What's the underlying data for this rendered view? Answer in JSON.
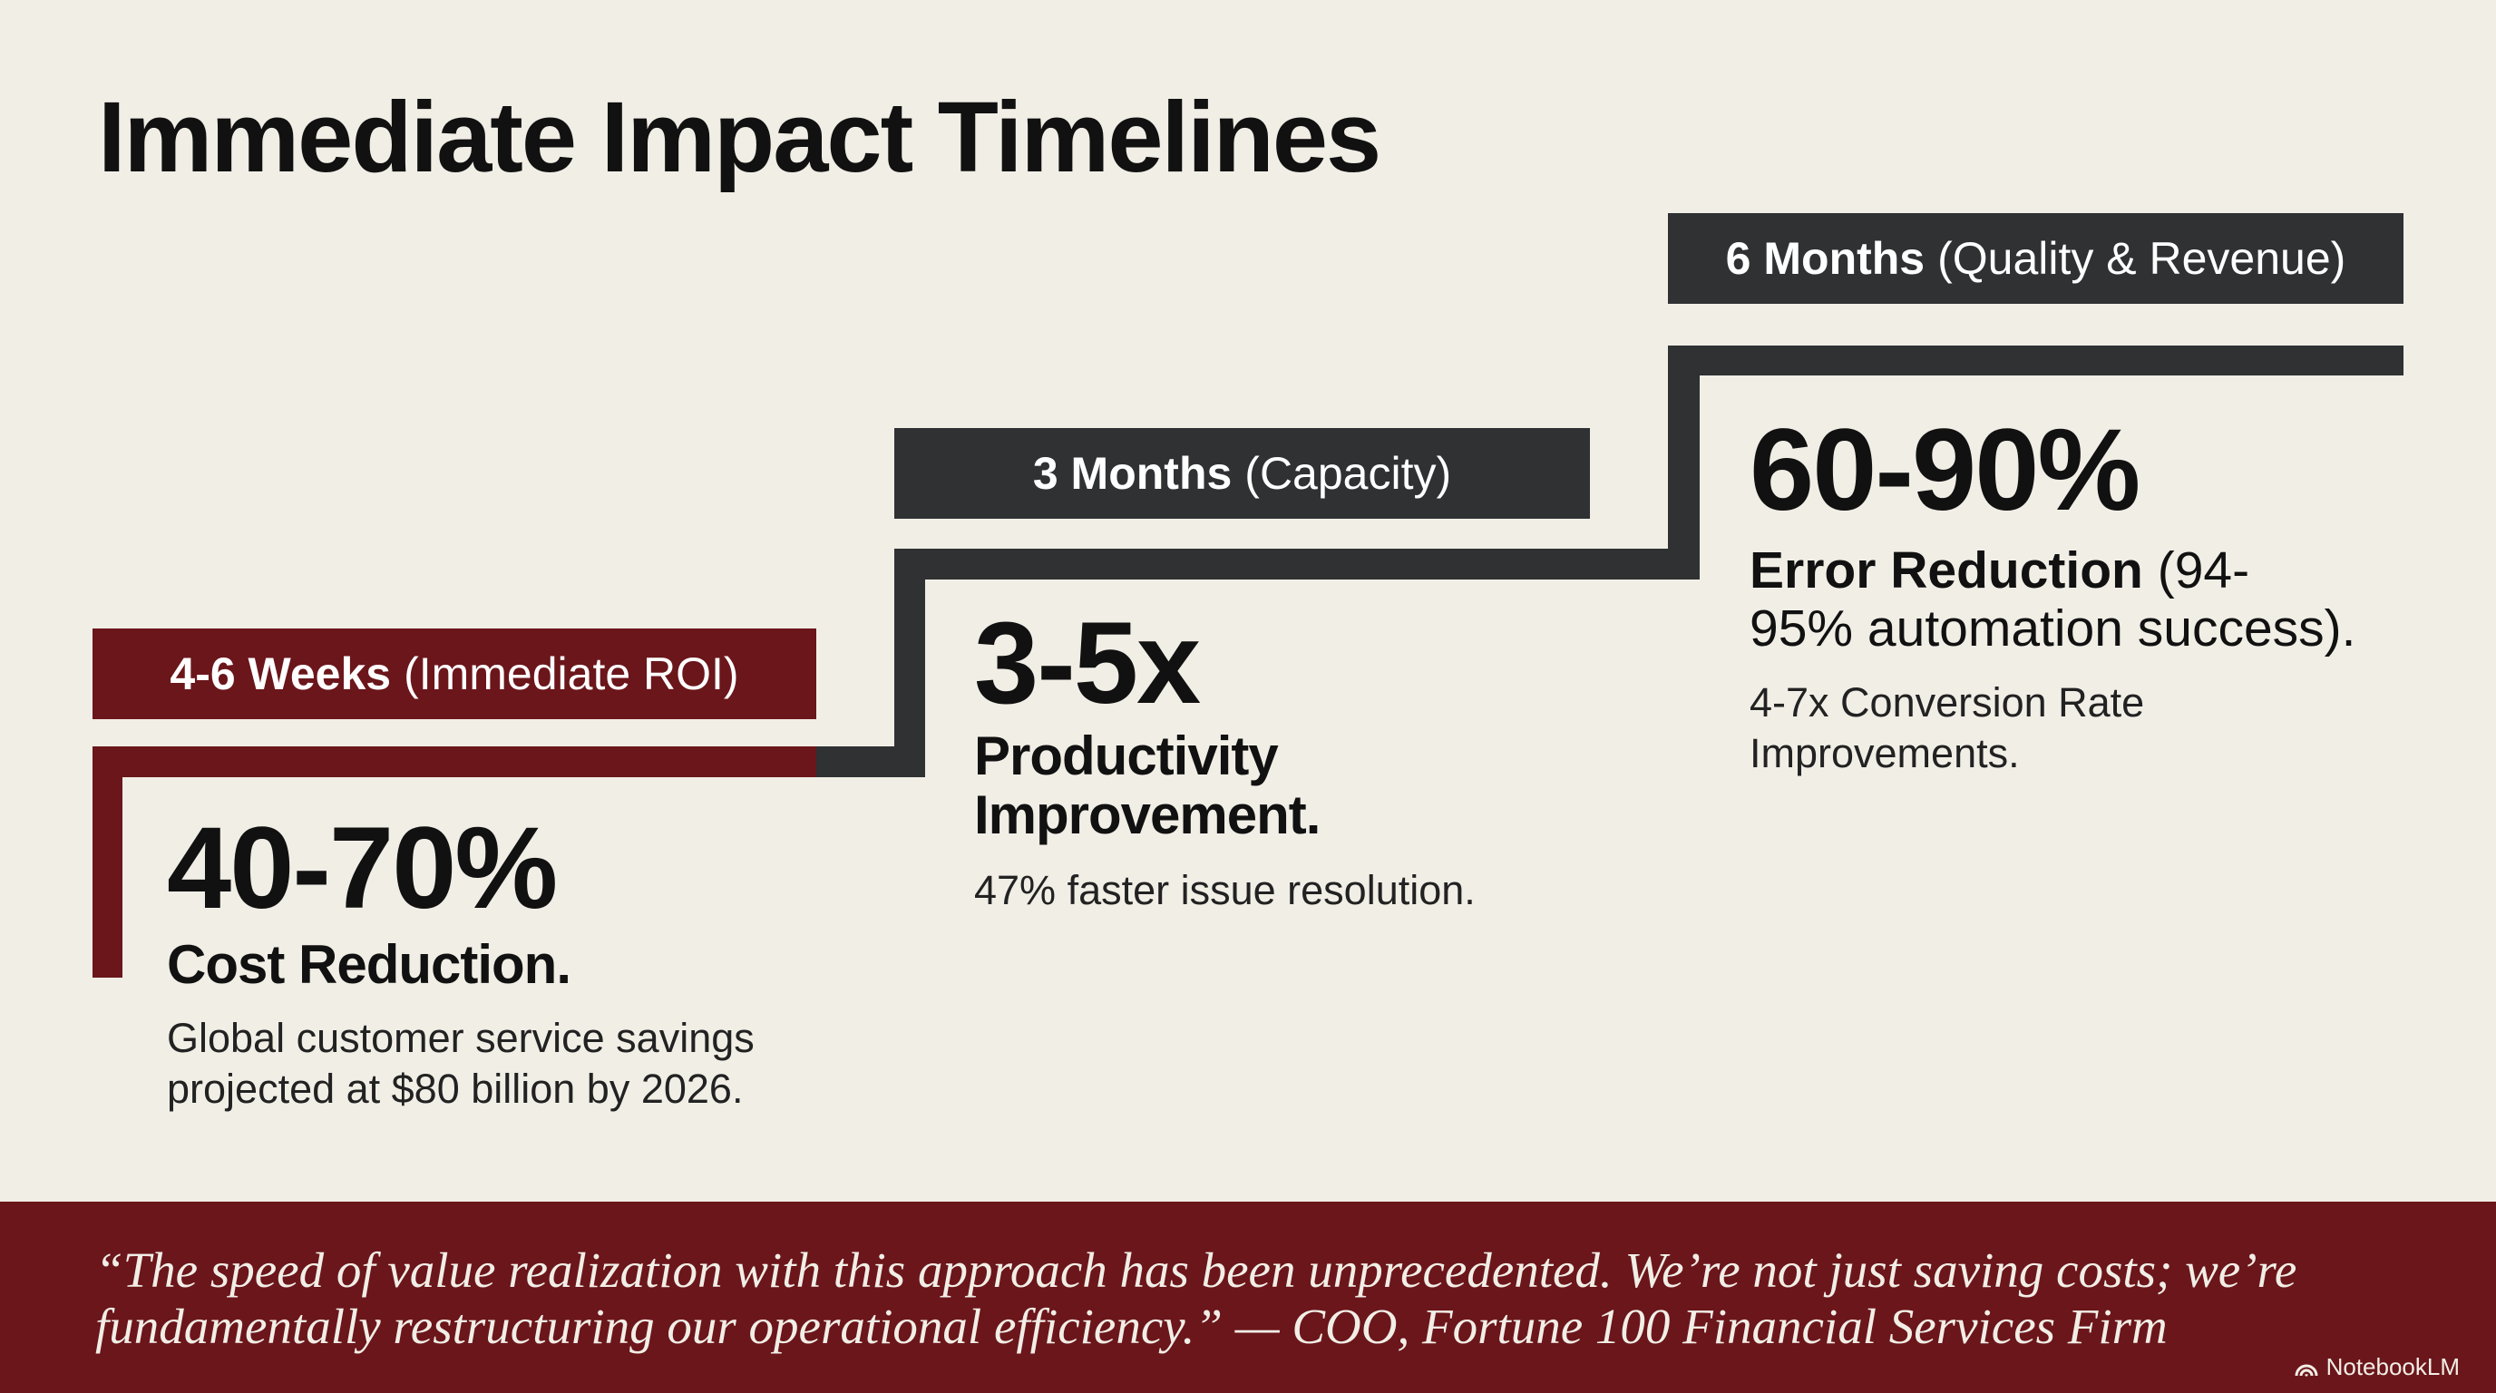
{
  "title": "Immediate Impact Timelines",
  "colors": {
    "accent": "#6b161b",
    "dark": "#2f3133",
    "background": "#f1eee6"
  },
  "stages": [
    {
      "period": "4-6 Weeks",
      "theme": "(Immediate ROI)",
      "metric": "40-70%",
      "headline": "Cost Reduction.",
      "details": [
        "Global customer service savings",
        "projected at $80 billion by 2026."
      ]
    },
    {
      "period": "3 Months",
      "theme": "(Capacity)",
      "metric": "3-5x",
      "headline": [
        "Productivity",
        "Improvement."
      ],
      "details": [
        "47% faster issue resolution."
      ]
    },
    {
      "period": "6 Months",
      "theme": "(Quality & Revenue)",
      "metric": "60-90%",
      "headline": "Error Reduction",
      "headline_rest": "(94-",
      "headline_line2": "95% automation success).",
      "details": [
        "4-7x Conversion Rate",
        "Improvements."
      ]
    }
  ],
  "quote": {
    "line1": "“The speed of value realization with this approach has been unprecedented. We’re not just saving costs; we’re",
    "line2": "fundamentally restructuring our operational efficiency.” — COO, Fortune 100 Financial Services Firm"
  },
  "brand": {
    "name": "NotebookLM",
    "icon": "notebooklm-logo-icon"
  }
}
